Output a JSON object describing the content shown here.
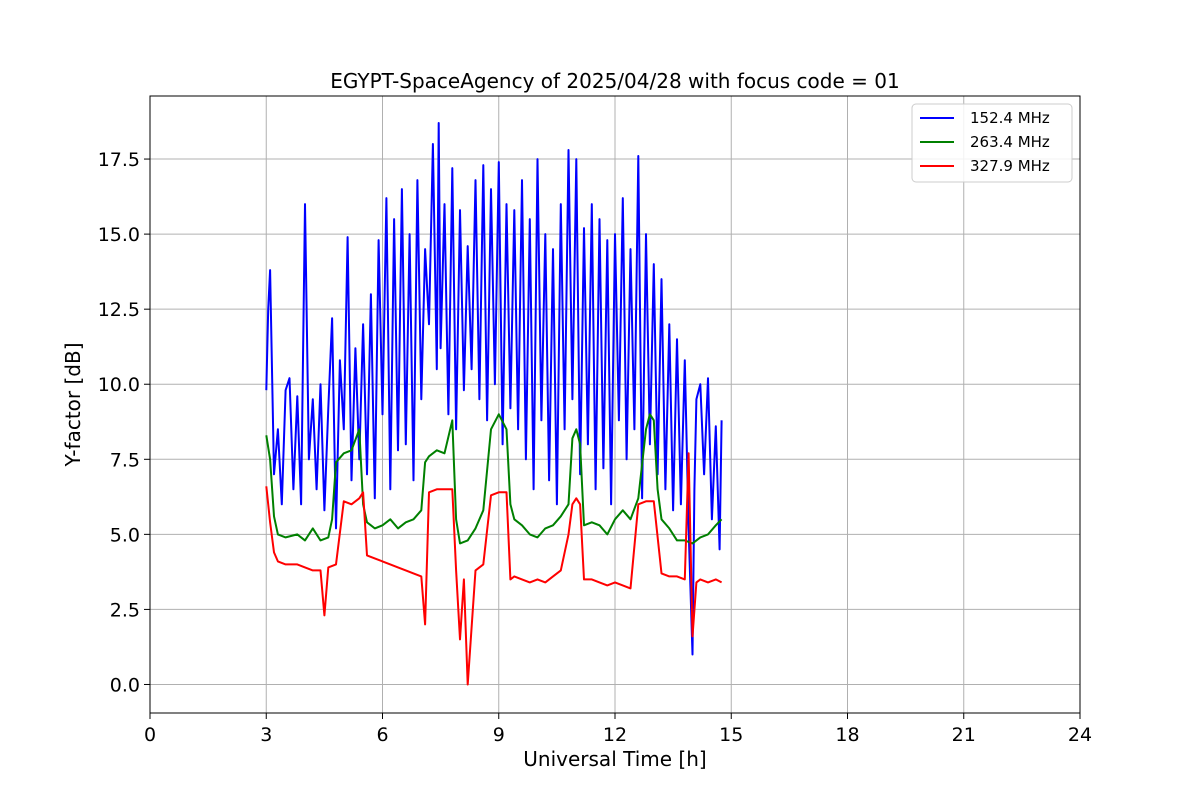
{
  "chart_data": {
    "type": "line",
    "title": "EGYPT-SpaceAgency of 2025/04/28 with focus code = 01",
    "xlabel": "Universal Time [h]",
    "ylabel": "Y-factor [dB]",
    "xlim": [
      0,
      24
    ],
    "ylim": [
      -0.95,
      19.6
    ],
    "xticks": [
      0,
      3,
      6,
      9,
      12,
      15,
      18,
      21,
      24
    ],
    "yticks": [
      0.0,
      2.5,
      5.0,
      7.5,
      10.0,
      12.5,
      15.0,
      17.5
    ],
    "grid": true,
    "legend": "top-right",
    "series": [
      {
        "name": "152.4 MHz",
        "color": "#0000ff",
        "x": [
          3.0,
          3.05,
          3.1,
          3.2,
          3.3,
          3.4,
          3.5,
          3.6,
          3.7,
          3.8,
          3.9,
          4.0,
          4.1,
          4.2,
          4.3,
          4.4,
          4.5,
          4.6,
          4.7,
          4.8,
          4.9,
          5.0,
          5.1,
          5.2,
          5.3,
          5.4,
          5.5,
          5.6,
          5.7,
          5.8,
          5.9,
          6.0,
          6.1,
          6.2,
          6.3,
          6.4,
          6.5,
          6.6,
          6.7,
          6.8,
          6.9,
          7.0,
          7.1,
          7.2,
          7.3,
          7.4,
          7.45,
          7.5,
          7.6,
          7.7,
          7.8,
          7.9,
          8.0,
          8.1,
          8.2,
          8.3,
          8.4,
          8.5,
          8.6,
          8.7,
          8.8,
          8.9,
          9.0,
          9.1,
          9.2,
          9.3,
          9.4,
          9.5,
          9.6,
          9.7,
          9.8,
          9.9,
          10.0,
          10.1,
          10.2,
          10.3,
          10.4,
          10.5,
          10.6,
          10.7,
          10.8,
          10.9,
          11.0,
          11.1,
          11.2,
          11.3,
          11.4,
          11.5,
          11.6,
          11.7,
          11.8,
          11.9,
          12.0,
          12.1,
          12.2,
          12.3,
          12.4,
          12.5,
          12.6,
          12.7,
          12.8,
          12.9,
          13.0,
          13.1,
          13.2,
          13.3,
          13.4,
          13.5,
          13.6,
          13.7,
          13.8,
          13.9,
          14.0,
          14.05,
          14.1,
          14.2,
          14.3,
          14.4,
          14.5,
          14.6,
          14.7,
          14.75
        ],
        "y": [
          9.8,
          12.5,
          13.8,
          7.0,
          8.5,
          6.0,
          9.8,
          10.2,
          6.5,
          9.6,
          6.0,
          16.0,
          7.5,
          9.5,
          6.5,
          10.0,
          5.8,
          9.2,
          12.2,
          5.2,
          10.8,
          8.5,
          14.9,
          6.8,
          11.2,
          7.5,
          12.0,
          7.0,
          13.0,
          6.2,
          14.8,
          9.0,
          16.2,
          6.5,
          15.5,
          7.8,
          16.5,
          8.0,
          15.0,
          6.8,
          16.8,
          9.5,
          14.5,
          12.0,
          18.0,
          10.5,
          18.7,
          11.2,
          16.0,
          9.0,
          17.2,
          8.5,
          15.8,
          9.8,
          14.6,
          10.5,
          16.8,
          9.5,
          17.3,
          8.8,
          16.5,
          10.0,
          17.4,
          8.0,
          16.0,
          9.2,
          15.8,
          8.5,
          16.8,
          7.5,
          15.5,
          6.5,
          17.5,
          8.8,
          15.0,
          6.8,
          14.5,
          6.0,
          16.0,
          8.5,
          17.8,
          9.5,
          17.5,
          7.0,
          15.2,
          8.0,
          16.0,
          6.5,
          15.5,
          7.2,
          14.8,
          6.0,
          15.0,
          8.8,
          16.2,
          7.5,
          14.5,
          8.5,
          17.6,
          6.2,
          15.0,
          8.0,
          14.0,
          7.0,
          13.5,
          6.5,
          12.0,
          5.8,
          11.5,
          6.0,
          10.8,
          5.2,
          1.0,
          6.5,
          9.5,
          10.0,
          7.0,
          10.2,
          5.5,
          8.6,
          4.5,
          8.8
        ]
      },
      {
        "name": "263.4 MHz",
        "color": "#008000",
        "x": [
          3.0,
          3.1,
          3.2,
          3.3,
          3.5,
          3.8,
          4.0,
          4.2,
          4.4,
          4.6,
          4.7,
          4.8,
          5.0,
          5.2,
          5.4,
          5.5,
          5.6,
          5.7,
          5.8,
          6.0,
          6.2,
          6.4,
          6.6,
          6.8,
          7.0,
          7.1,
          7.2,
          7.4,
          7.6,
          7.8,
          7.9,
          8.0,
          8.2,
          8.4,
          8.6,
          8.8,
          9.0,
          9.2,
          9.3,
          9.4,
          9.6,
          9.8,
          10.0,
          10.2,
          10.4,
          10.6,
          10.8,
          10.9,
          11.0,
          11.1,
          11.2,
          11.4,
          11.6,
          11.8,
          12.0,
          12.2,
          12.4,
          12.6,
          12.8,
          12.9,
          13.0,
          13.1,
          13.2,
          13.4,
          13.6,
          13.8,
          14.0,
          14.2,
          14.4,
          14.6,
          14.75
        ],
        "y": [
          8.3,
          7.5,
          5.6,
          5.0,
          4.9,
          5.0,
          4.8,
          5.2,
          4.8,
          4.9,
          5.5,
          7.4,
          7.7,
          7.8,
          8.5,
          6.0,
          5.4,
          5.3,
          5.2,
          5.3,
          5.5,
          5.2,
          5.4,
          5.5,
          5.8,
          7.4,
          7.6,
          7.8,
          7.7,
          8.8,
          5.5,
          4.7,
          4.8,
          5.2,
          5.8,
          8.5,
          9.0,
          8.5,
          6.0,
          5.5,
          5.3,
          5.0,
          4.9,
          5.2,
          5.3,
          5.6,
          6.0,
          8.2,
          8.5,
          8.0,
          5.3,
          5.4,
          5.3,
          5.0,
          5.5,
          5.8,
          5.5,
          6.2,
          8.5,
          9.0,
          8.8,
          6.5,
          5.5,
          5.2,
          4.8,
          4.8,
          4.7,
          4.9,
          5.0,
          5.3,
          5.5
        ]
      },
      {
        "name": "327.9 MHz",
        "color": "#ff0000",
        "x": [
          3.0,
          3.05,
          3.1,
          3.2,
          3.3,
          3.5,
          3.8,
          4.0,
          4.2,
          4.4,
          4.5,
          4.6,
          4.8,
          5.0,
          5.2,
          5.4,
          5.5,
          5.6,
          5.8,
          6.0,
          6.2,
          6.4,
          6.6,
          6.8,
          7.0,
          7.1,
          7.2,
          7.4,
          7.6,
          7.8,
          7.9,
          8.0,
          8.1,
          8.2,
          8.4,
          8.6,
          8.8,
          9.0,
          9.2,
          9.3,
          9.4,
          9.6,
          9.8,
          10.0,
          10.2,
          10.4,
          10.6,
          10.8,
          10.9,
          11.0,
          11.1,
          11.2,
          11.4,
          11.6,
          11.8,
          12.0,
          12.2,
          12.4,
          12.6,
          12.8,
          12.9,
          13.0,
          13.2,
          13.4,
          13.6,
          13.8,
          13.9,
          14.0,
          14.1,
          14.2,
          14.4,
          14.6,
          14.75
        ],
        "y": [
          6.6,
          6.0,
          5.4,
          4.4,
          4.1,
          4.0,
          4.0,
          3.9,
          3.8,
          3.8,
          2.3,
          3.9,
          4.0,
          6.1,
          6.0,
          6.2,
          6.4,
          4.3,
          4.2,
          4.1,
          4.0,
          3.9,
          3.8,
          3.7,
          3.6,
          2.0,
          6.4,
          6.5,
          6.5,
          6.5,
          3.8,
          1.5,
          3.5,
          0.0,
          3.8,
          4.0,
          6.3,
          6.4,
          6.4,
          3.5,
          3.6,
          3.5,
          3.4,
          3.5,
          3.4,
          3.6,
          3.8,
          5.0,
          6.0,
          6.2,
          6.0,
          3.5,
          3.5,
          3.4,
          3.3,
          3.4,
          3.3,
          3.2,
          6.0,
          6.1,
          6.1,
          6.1,
          3.7,
          3.6,
          3.6,
          3.5,
          7.7,
          1.6,
          3.4,
          3.5,
          3.4,
          3.5,
          3.4
        ]
      }
    ]
  }
}
